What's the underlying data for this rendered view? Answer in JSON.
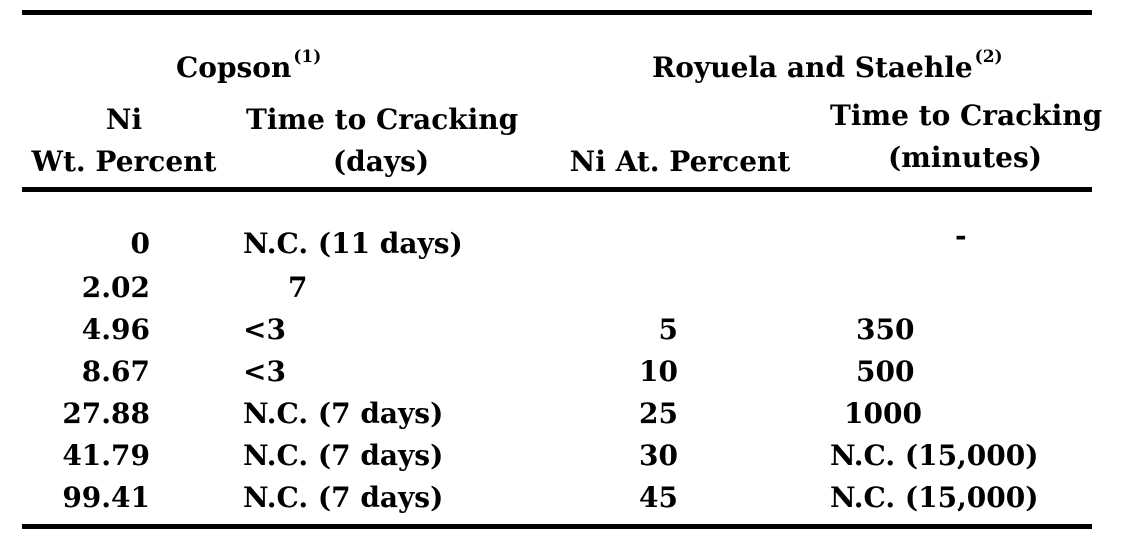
{
  "headers": {
    "copson": {
      "title": "Copson",
      "ref": "(1)"
    },
    "royuela": {
      "title": "Royuela and Staehle",
      "ref": "(2)"
    },
    "col1": {
      "line1": "Ni",
      "line2": "Wt. Percent"
    },
    "col2": {
      "line1": "Time to Cracking",
      "line2": "(days)"
    },
    "col3": {
      "line1": "Ni At. Percent"
    },
    "col4": {
      "line1": "Time to Cracking",
      "line2": "(minutes)"
    }
  },
  "rows": [
    {
      "ni_wt": "0",
      "time_days": "N.C. (11 days)",
      "ni_at": "",
      "time_min": "-"
    },
    {
      "ni_wt": "2.02",
      "time_days": "7",
      "ni_at": "",
      "time_min": ""
    },
    {
      "ni_wt": "4.96",
      "time_days": "<3",
      "ni_at": "5",
      "time_min": "350"
    },
    {
      "ni_wt": "8.67",
      "time_days": "<3",
      "ni_at": "10",
      "time_min": "500"
    },
    {
      "ni_wt": "27.88",
      "time_days": "N.C. (7 days)",
      "ni_at": "25",
      "time_min": "1000"
    },
    {
      "ni_wt": "41.79",
      "time_days": "N.C. (7 days)",
      "ni_at": "30",
      "time_min": "N.C. (15,000)"
    },
    {
      "ni_wt": "99.41",
      "time_days": "N.C. (7 days)",
      "ni_at": "45",
      "time_min": "N.C. (15,000)"
    }
  ]
}
